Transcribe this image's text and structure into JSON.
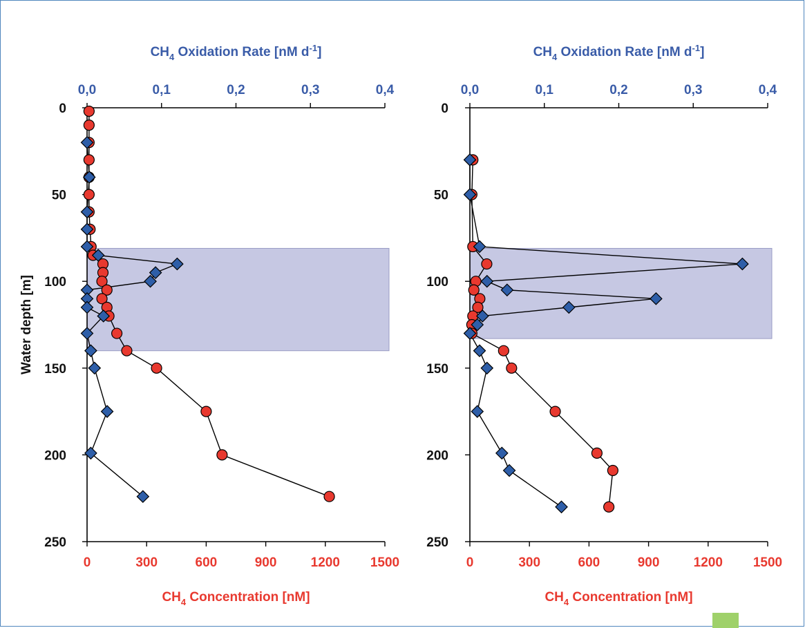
{
  "chart_data": [
    {
      "type": "scatter",
      "title": "",
      "ylabel": "Water depth [m]",
      "ylim": [
        0,
        250
      ],
      "y_inverted": true,
      "y_ticks": [
        "0",
        "50",
        "100",
        "150",
        "200",
        "250"
      ],
      "x_bottom": {
        "label_parts": [
          "CH",
          "4",
          " Concentration [nM]"
        ],
        "range": [
          0,
          1500
        ],
        "ticks": [
          "0",
          "300",
          "600",
          "900",
          "1200",
          "1500"
        ],
        "color": "#e8392f"
      },
      "x_top": {
        "label_parts": [
          "CH",
          "4",
          " Oxidation Rate [nM d",
          "-1",
          "]"
        ],
        "range": [
          0,
          0.4
        ],
        "ticks": [
          "0,0",
          "0,1",
          "0,2",
          "0,3",
          "0,4"
        ],
        "color": "#3a5ca8"
      },
      "shaded_band": {
        "depth_from": 81,
        "depth_to": 140,
        "color": "#c6c8e3"
      },
      "grid": false,
      "series": [
        {
          "marker": "circle",
          "axis": "bottom",
          "color": "#e8392f",
          "points": [
            [
              10,
              2
            ],
            [
              10,
              10
            ],
            [
              10,
              20
            ],
            [
              10,
              30
            ],
            [
              10,
              40
            ],
            [
              10,
              50
            ],
            [
              10,
              60
            ],
            [
              15,
              70
            ],
            [
              20,
              80
            ],
            [
              30,
              85
            ],
            [
              80,
              90
            ],
            [
              80,
              95
            ],
            [
              75,
              100
            ],
            [
              100,
              105
            ],
            [
              75,
              110
            ],
            [
              100,
              115
            ],
            [
              110,
              120
            ],
            [
              150,
              130
            ],
            [
              200,
              140
            ],
            [
              350,
              150
            ],
            [
              600,
              175
            ],
            [
              680,
              200
            ],
            [
              1220,
              224
            ]
          ]
        },
        {
          "marker": "diamond",
          "axis": "top",
          "color": "#2e5ea8",
          "points": [
            [
              0.0,
              20
            ],
            [
              0.003,
              40
            ],
            [
              0.0,
              60
            ],
            [
              0.0,
              70
            ],
            [
              0.0,
              80
            ],
            [
              0.015,
              85
            ],
            [
              0.121,
              90
            ],
            [
              0.092,
              95
            ],
            [
              0.085,
              100
            ],
            [
              0.0,
              105
            ],
            [
              0.0,
              110
            ],
            [
              0.0,
              115
            ],
            [
              0.022,
              120
            ],
            [
              0.0,
              130
            ],
            [
              0.005,
              140
            ],
            [
              0.01,
              150
            ],
            [
              0.027,
              175
            ],
            [
              0.005,
              199
            ],
            [
              0.075,
              224
            ]
          ]
        }
      ]
    },
    {
      "type": "scatter",
      "title": "",
      "ylabel": "",
      "ylim": [
        0,
        250
      ],
      "y_inverted": true,
      "y_ticks": [
        "0",
        "50",
        "100",
        "150",
        "200",
        "250"
      ],
      "x_bottom": {
        "label_parts": [
          "CH",
          "4",
          " Concentration [nM]"
        ],
        "range": [
          0,
          1500
        ],
        "ticks": [
          "0",
          "300",
          "600",
          "900",
          "1200",
          "1500"
        ],
        "color": "#e8392f"
      },
      "x_top": {
        "label_parts": [
          "CH",
          "4",
          " Oxidation Rate [nM d",
          "-1",
          "]"
        ],
        "range": [
          0,
          0.4
        ],
        "ticks": [
          "0,0",
          "0,1",
          "0,2",
          "0,3",
          "0,4"
        ],
        "color": "#3a5ca8"
      },
      "shaded_band": {
        "depth_from": 81,
        "depth_to": 133,
        "color": "#c6c8e3"
      },
      "grid": false,
      "series": [
        {
          "marker": "circle",
          "axis": "bottom",
          "color": "#e8392f",
          "points": [
            [
              15,
              30
            ],
            [
              10,
              50
            ],
            [
              15,
              80
            ],
            [
              85,
              90
            ],
            [
              30,
              100
            ],
            [
              20,
              105
            ],
            [
              50,
              110
            ],
            [
              40,
              115
            ],
            [
              15,
              120
            ],
            [
              10,
              125
            ],
            [
              10,
              130
            ],
            [
              170,
              140
            ],
            [
              210,
              150
            ],
            [
              430,
              175
            ],
            [
              640,
              199
            ],
            [
              720,
              209
            ],
            [
              700,
              230
            ]
          ]
        },
        {
          "marker": "diamond",
          "axis": "top",
          "color": "#2e5ea8",
          "points": [
            [
              0.0,
              30
            ],
            [
              0.0,
              50
            ],
            [
              0.013,
              80
            ],
            [
              0.366,
              90
            ],
            [
              0.023,
              100
            ],
            [
              0.05,
              105
            ],
            [
              0.25,
              110
            ],
            [
              0.133,
              115
            ],
            [
              0.017,
              120
            ],
            [
              0.01,
              125
            ],
            [
              0.0,
              130
            ],
            [
              0.013,
              140
            ],
            [
              0.023,
              150
            ],
            [
              0.01,
              175
            ],
            [
              0.043,
              199
            ],
            [
              0.053,
              209
            ],
            [
              0.123,
              230
            ]
          ]
        }
      ]
    }
  ]
}
